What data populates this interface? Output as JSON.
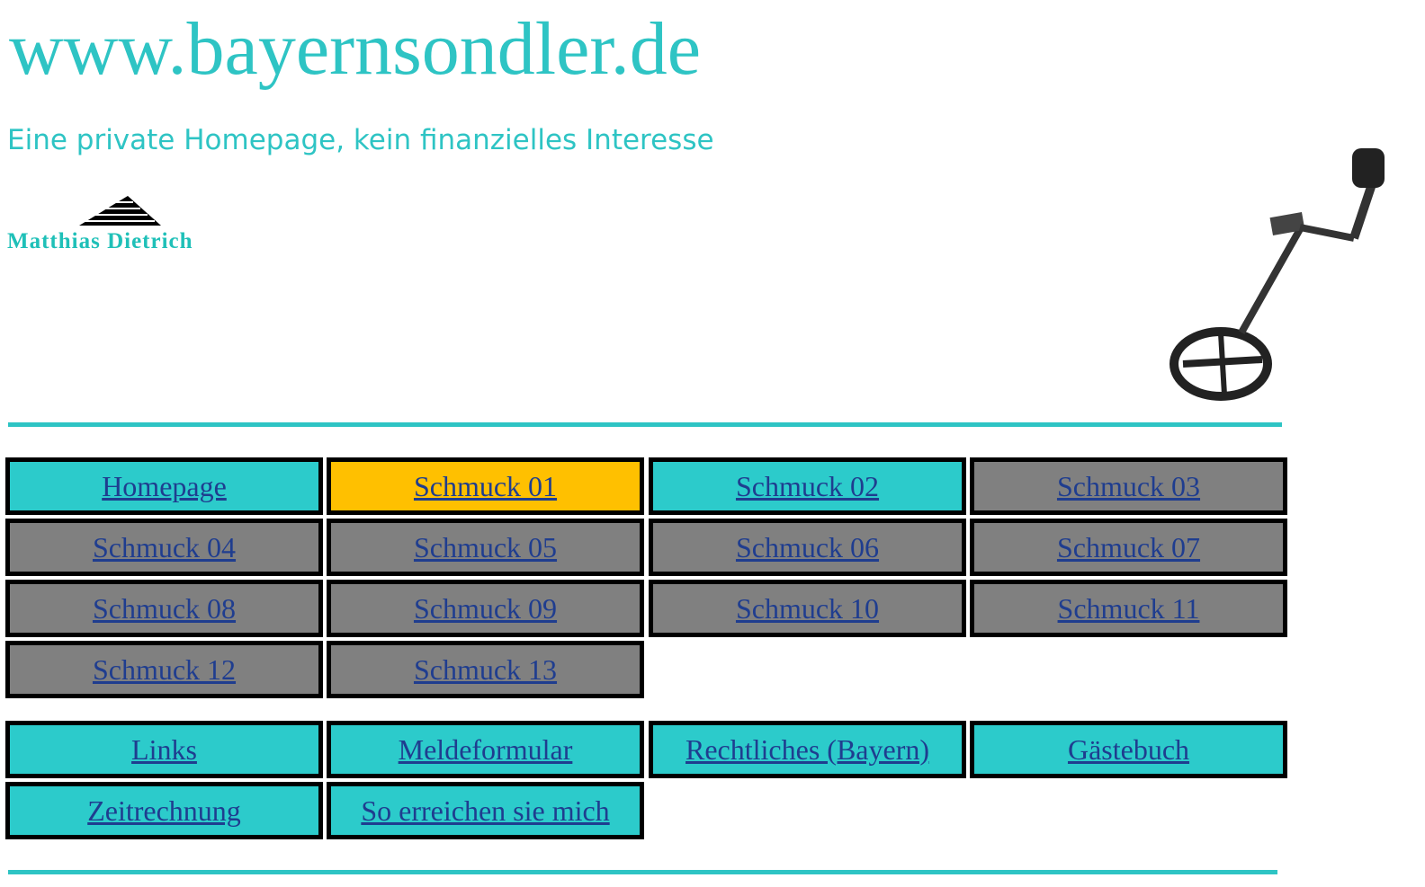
{
  "header": {
    "title": "www.bayernsondler.de",
    "subtitle": "Eine private Homepage, kein finanzielles Interesse",
    "logo_text": "Matthias Dietrich"
  },
  "nav": {
    "primary": [
      "Homepage",
      "Schmuck 01",
      "Schmuck 02",
      "Schmuck 03",
      "Schmuck 04",
      "Schmuck 05",
      "Schmuck 06",
      "Schmuck 07",
      "Schmuck 08",
      "Schmuck 09",
      "Schmuck 10",
      "Schmuck 11",
      "Schmuck 12",
      "Schmuck 13"
    ],
    "secondary": [
      "Links",
      "Meldeformular",
      "Rechtliches (Bayern)",
      "Gästebuch",
      "Zeitrechnung",
      "So erreichen sie mich"
    ]
  }
}
